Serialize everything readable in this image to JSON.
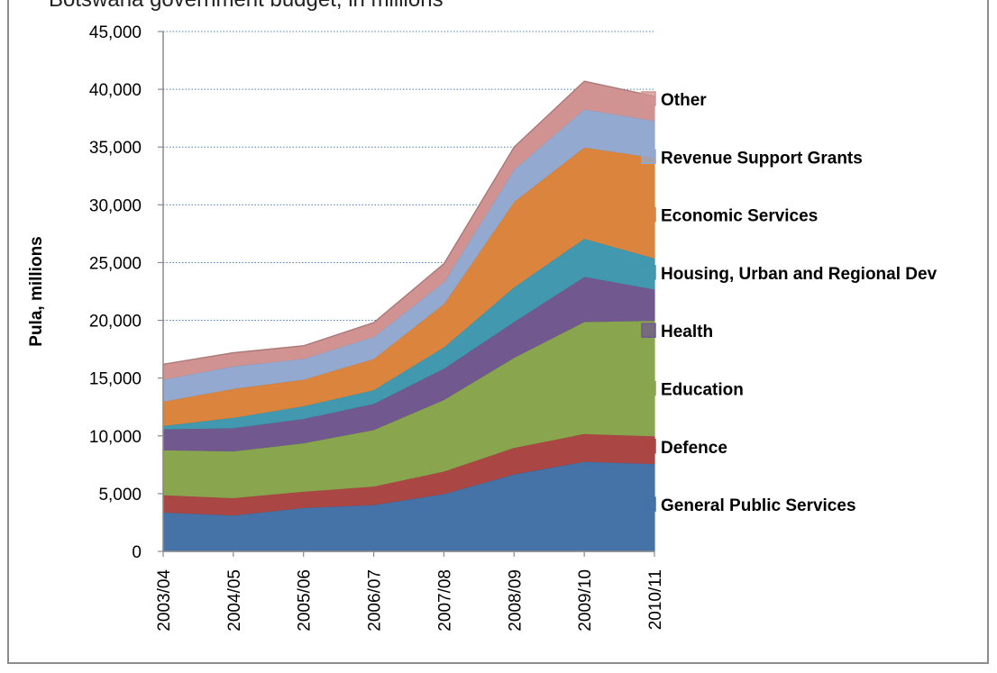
{
  "header_text": "Botswana government budget, in millions",
  "chart_data": {
    "type": "area",
    "stacked": true,
    "title": "",
    "xlabel": "",
    "ylabel": "Pula, millions",
    "ylim": [
      0,
      45000
    ],
    "yticks": [
      0,
      5000,
      10000,
      15000,
      20000,
      25000,
      30000,
      35000,
      40000,
      45000
    ],
    "ytick_labels": [
      "0",
      "5,000",
      "10,000",
      "15,000",
      "20,000",
      "25,000",
      "30,000",
      "35,000",
      "40,000",
      "45,000"
    ],
    "grid": true,
    "legend_position": "right",
    "categories": [
      "2003/04",
      "2004/05",
      "2005/06",
      "2006/07",
      "2007/08",
      "2008/09",
      "2009/10",
      "2010/11"
    ],
    "series": [
      {
        "name": "General Public Services",
        "color": "#4572A7",
        "values": [
          3400,
          3150,
          3800,
          4050,
          5000,
          6700,
          7800,
          7600
        ]
      },
      {
        "name": "Defence",
        "color": "#AA4643",
        "values": [
          1500,
          1500,
          1400,
          1600,
          1950,
          2300,
          2400,
          2400
        ]
      },
      {
        "name": "Education",
        "color": "#89A54E",
        "values": [
          3900,
          4050,
          4200,
          4900,
          6200,
          7800,
          9700,
          10000
        ]
      },
      {
        "name": "Health",
        "color": "#71588F",
        "values": [
          1800,
          2000,
          2100,
          2250,
          2700,
          3100,
          3900,
          2700
        ]
      },
      {
        "name": "Housing, Urban and Regional Dev",
        "color": "#4198AF",
        "values": [
          300,
          900,
          1100,
          1200,
          1850,
          3000,
          3300,
          2700
        ]
      },
      {
        "name": "Economic Services",
        "color": "#DB843D",
        "values": [
          2100,
          2500,
          2300,
          2700,
          3750,
          7400,
          7900,
          8700
        ]
      },
      {
        "name": "Revenue Support Grants",
        "color": "#93A9CF",
        "values": [
          1900,
          1950,
          1800,
          1900,
          1900,
          2800,
          3300,
          3200
        ]
      },
      {
        "name": "Other",
        "color": "#D19392",
        "values": [
          1300,
          1150,
          1100,
          1200,
          1550,
          1900,
          2400,
          2100
        ]
      }
    ]
  }
}
